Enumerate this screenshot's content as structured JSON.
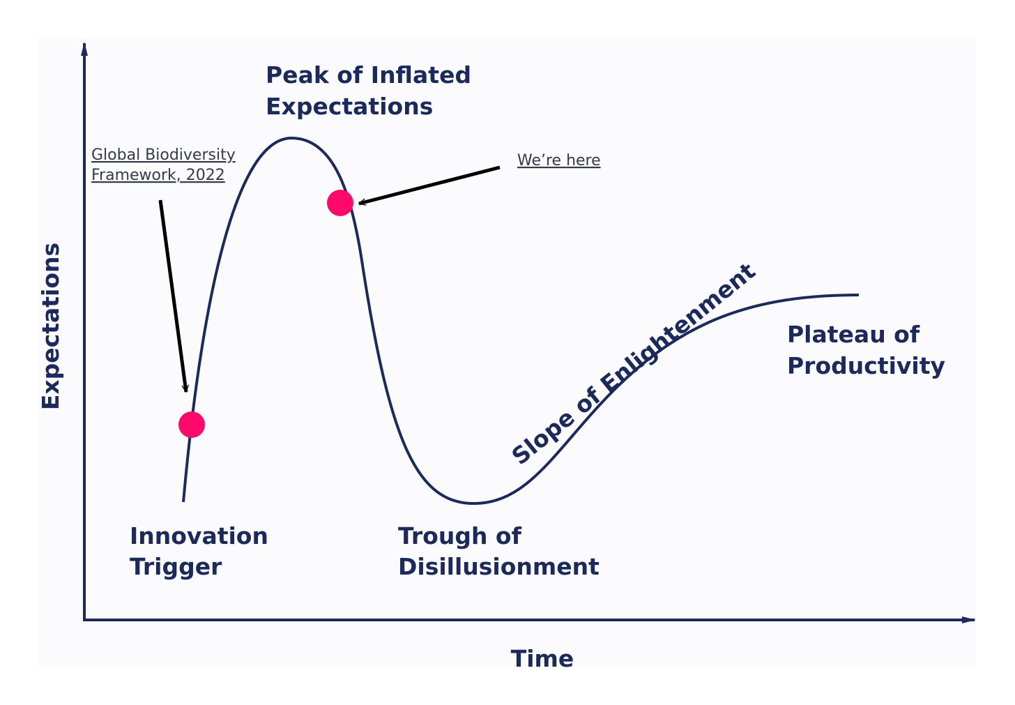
{
  "axes": {
    "y_label": "Expectations",
    "x_label": "Time"
  },
  "phases": [
    {
      "lines": [
        "Innovation",
        "Trigger"
      ]
    },
    {
      "lines": [
        "Peak of Inflated",
        "Expectations"
      ]
    },
    {
      "lines": [
        "Trough of",
        "Disillusionment"
      ]
    },
    {
      "lines": [
        "Slope of Enlightenment"
      ]
    },
    {
      "lines": [
        "Plateau of",
        "Productivity"
      ]
    }
  ],
  "annotations": [
    {
      "lines": [
        "Global Biodiversity",
        "Framework, 2022"
      ]
    },
    {
      "lines": [
        "We’re here"
      ]
    }
  ]
}
